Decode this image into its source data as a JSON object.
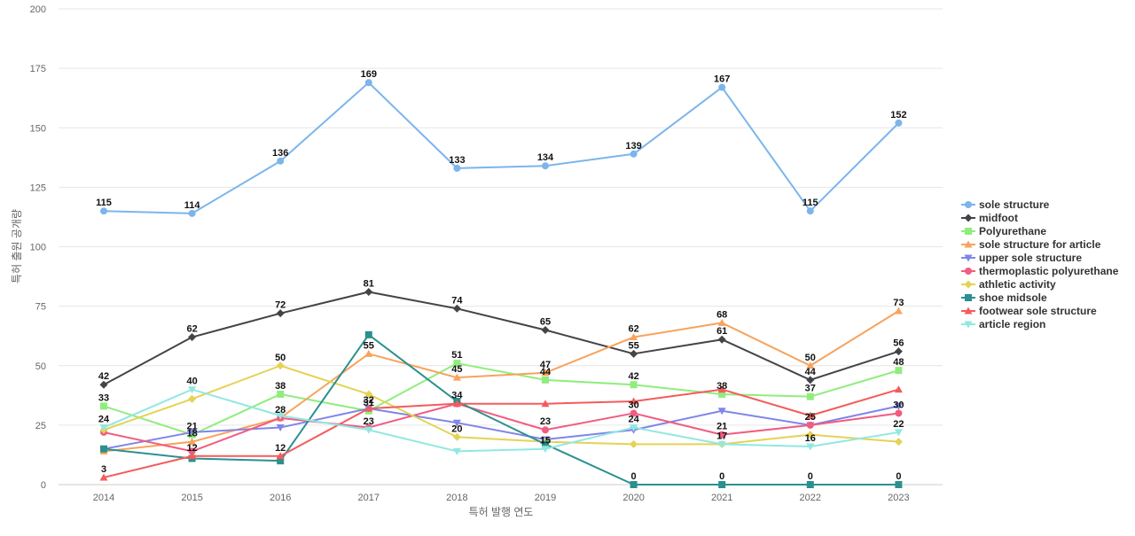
{
  "chart_data": {
    "type": "line",
    "title": "",
    "xlabel": "특허 발행 연도",
    "ylabel": "특허 출원 공개량",
    "categories": [
      "2014",
      "2015",
      "2016",
      "2017",
      "2018",
      "2019",
      "2020",
      "2021",
      "2022",
      "2023"
    ],
    "ylim": [
      0,
      200
    ],
    "yticks": [
      0,
      25,
      50,
      75,
      100,
      125,
      150,
      175,
      200
    ],
    "grid": true,
    "legend": "right",
    "series": [
      {
        "name": "sole structure",
        "color": "#7cb5ec",
        "marker": "circle",
        "values": [
          115,
          114,
          136,
          169,
          133,
          134,
          139,
          167,
          115,
          152
        ]
      },
      {
        "name": "midfoot",
        "color": "#434348",
        "marker": "diamond",
        "values": [
          42,
          62,
          72,
          81,
          74,
          65,
          55,
          61,
          44,
          56
        ]
      },
      {
        "name": "Polyurethane",
        "color": "#90ed7d",
        "marker": "square",
        "values": [
          33,
          21,
          38,
          31,
          51,
          44,
          42,
          38,
          37,
          48
        ]
      },
      {
        "name": "sole structure for article",
        "color": "#f7a35c",
        "marker": "triangle",
        "values": [
          14,
          18,
          28,
          55,
          45,
          47,
          62,
          68,
          50,
          73
        ]
      },
      {
        "name": "upper sole structure",
        "color": "#8085e9",
        "marker": "triangle-down",
        "values": [
          15,
          22,
          24,
          32,
          26,
          19,
          23,
          31,
          25,
          33
        ]
      },
      {
        "name": "thermoplastic polyurethane",
        "color": "#f15c80",
        "marker": "circle",
        "values": [
          22,
          14,
          28,
          24,
          34,
          23,
          30,
          21,
          25,
          30
        ]
      },
      {
        "name": "athletic activity",
        "color": "#e4d354",
        "marker": "diamond",
        "values": [
          23,
          36,
          50,
          38,
          20,
          18,
          17,
          17,
          21,
          18
        ]
      },
      {
        "name": "shoe midsole",
        "color": "#2b908f",
        "marker": "square",
        "values": [
          15,
          11,
          10,
          63,
          35,
          17,
          0,
          0,
          0,
          0
        ]
      },
      {
        "name": "footwear sole structure",
        "color": "#f45b5b",
        "marker": "triangle",
        "values": [
          3,
          12,
          12,
          32,
          34,
          34,
          35,
          40,
          29,
          40
        ]
      },
      {
        "name": "article region",
        "color": "#91e8e1",
        "marker": "triangle-down",
        "values": [
          24,
          40,
          29,
          23,
          14,
          15,
          24,
          17,
          16,
          22
        ]
      }
    ],
    "data_labels": [
      {
        "series": 0,
        "points": [
          0,
          1,
          2,
          3,
          4,
          5,
          6,
          7,
          8,
          9
        ]
      },
      {
        "series": 1,
        "points": [
          0,
          1,
          2,
          3,
          4,
          5,
          6,
          7,
          8,
          9
        ]
      },
      {
        "series": 2,
        "points": [
          0,
          1,
          2,
          3,
          4,
          5,
          6,
          7,
          8,
          9
        ]
      },
      {
        "series": 3,
        "points": [
          1,
          2,
          3,
          4,
          5,
          6,
          7,
          8,
          9
        ]
      },
      {
        "series": 5,
        "points": [
          4,
          5,
          6,
          7,
          8,
          9
        ]
      },
      {
        "series": 6,
        "points": [
          2,
          4
        ]
      },
      {
        "series": 7,
        "points": [
          6,
          7,
          8,
          9
        ]
      },
      {
        "series": 8,
        "points": [
          0,
          1,
          2,
          3
        ]
      },
      {
        "series": 9,
        "points": [
          0,
          1,
          3,
          5,
          6,
          7,
          8,
          9
        ]
      }
    ]
  }
}
